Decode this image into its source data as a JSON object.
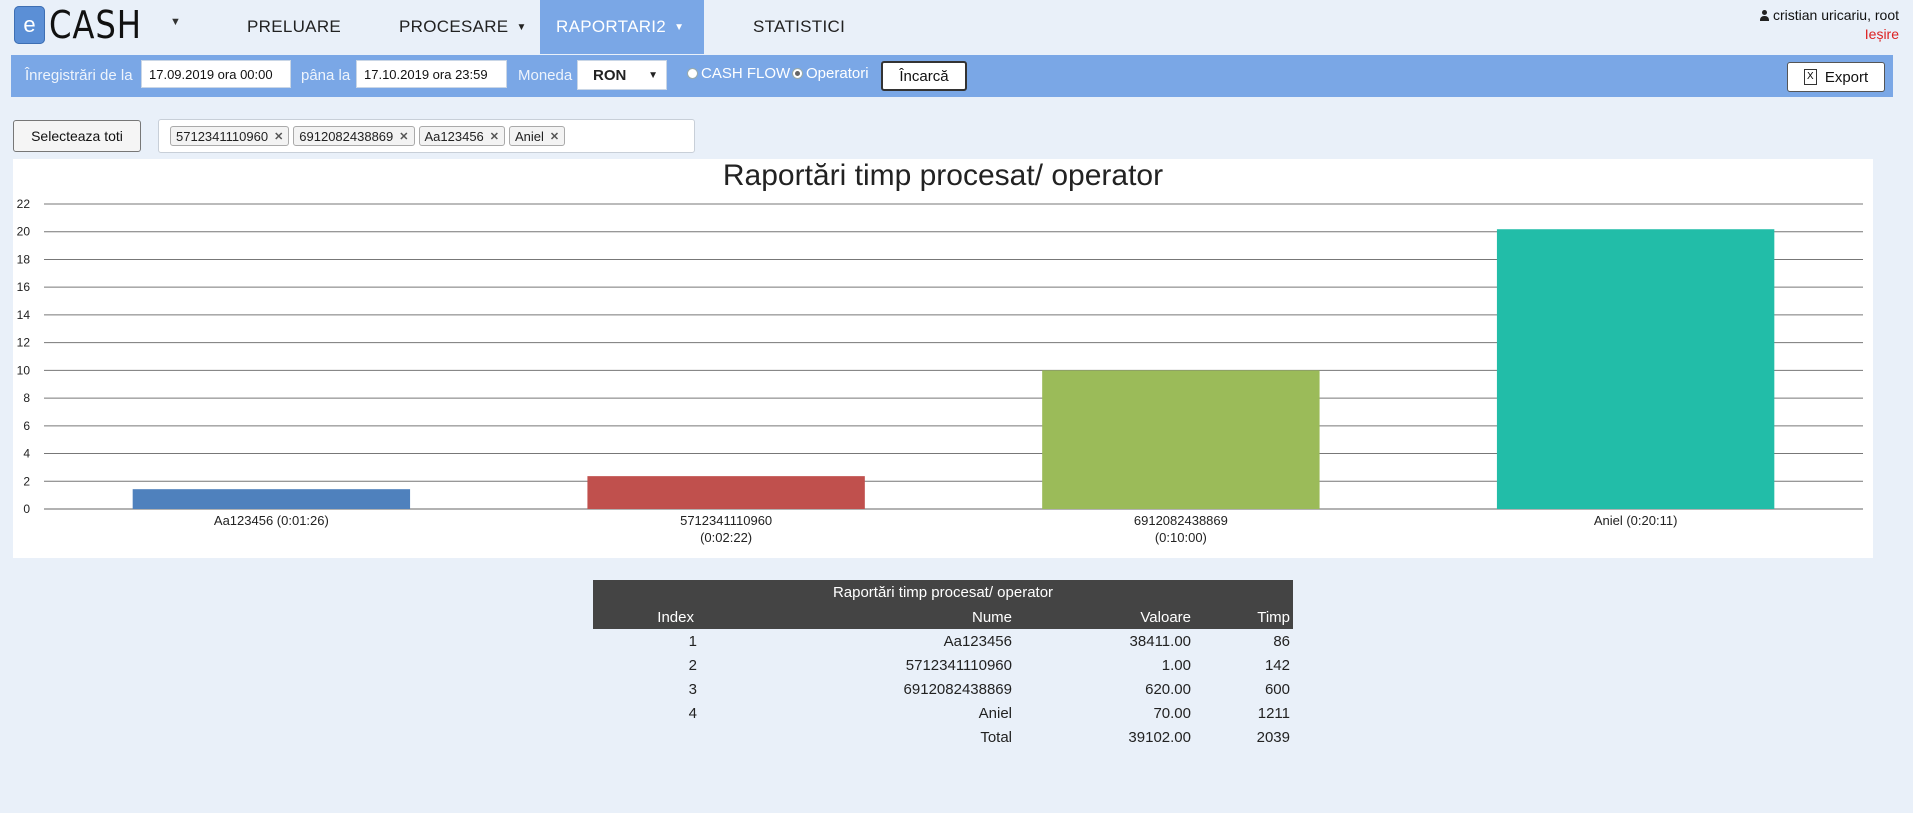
{
  "app": {
    "logo_letter": "e",
    "logo_text": "CASH",
    "user": "cristian uricariu, root",
    "logout": "Ieșire"
  },
  "nav": {
    "items": [
      {
        "label": "PRELUARE"
      },
      {
        "label": "PROCESARE"
      },
      {
        "label": "RAPORTARI2"
      },
      {
        "label": "STATISTICI"
      }
    ]
  },
  "filters": {
    "from_label": "Înregistrări de la",
    "from_value": "17.09.2019 ora 00:00",
    "to_label": "pâna la",
    "to_value": "17.10.2019 ora 23:59",
    "currency_label": "Moneda",
    "currency_value": "RON",
    "radio_cashflow": "CASH FLOW",
    "radio_operatori": "Operatori",
    "load_button": "Încarcă",
    "export_button": "Export"
  },
  "selection": {
    "select_all": "Selecteaza toti",
    "tags": [
      "5712341110960",
      "6912082438869",
      "Aa123456",
      "Aniel"
    ]
  },
  "chart_data": {
    "type": "bar",
    "title": "Raportări timp procesat/ operator",
    "categories": [
      [
        "Aa123456 (0:01:26)"
      ],
      [
        "5712341110960",
        "(0:02:22)"
      ],
      [
        "6912082438869",
        "(0:10:00)"
      ],
      [
        "Aniel (0:20:11)"
      ]
    ],
    "values": [
      1.43,
      2.37,
      10.0,
      20.18
    ],
    "colors": [
      "#4f81bd",
      "#c0504d",
      "#9bbb59",
      "#22bda8"
    ],
    "ylim": [
      0,
      22
    ],
    "yticks": [
      0,
      2,
      4,
      6,
      8,
      10,
      12,
      14,
      16,
      18,
      20,
      22
    ],
    "grid": true
  },
  "table": {
    "caption": "Raportări timp procesat/ operator",
    "headers": {
      "index": "Index",
      "nume": "Nume",
      "valoare": "Valoare",
      "timp": "Timp"
    },
    "rows": [
      {
        "index": "1",
        "nume": "Aa123456",
        "valoare": "38411.00",
        "timp": "86"
      },
      {
        "index": "2",
        "nume": "5712341110960",
        "valoare": "1.00",
        "timp": "142"
      },
      {
        "index": "3",
        "nume": "6912082438869",
        "valoare": "620.00",
        "timp": "600"
      },
      {
        "index": "4",
        "nume": "Aniel",
        "valoare": "70.00",
        "timp": "1211"
      }
    ],
    "total": {
      "label": "Total",
      "valoare": "39102.00",
      "timp": "2039"
    }
  }
}
